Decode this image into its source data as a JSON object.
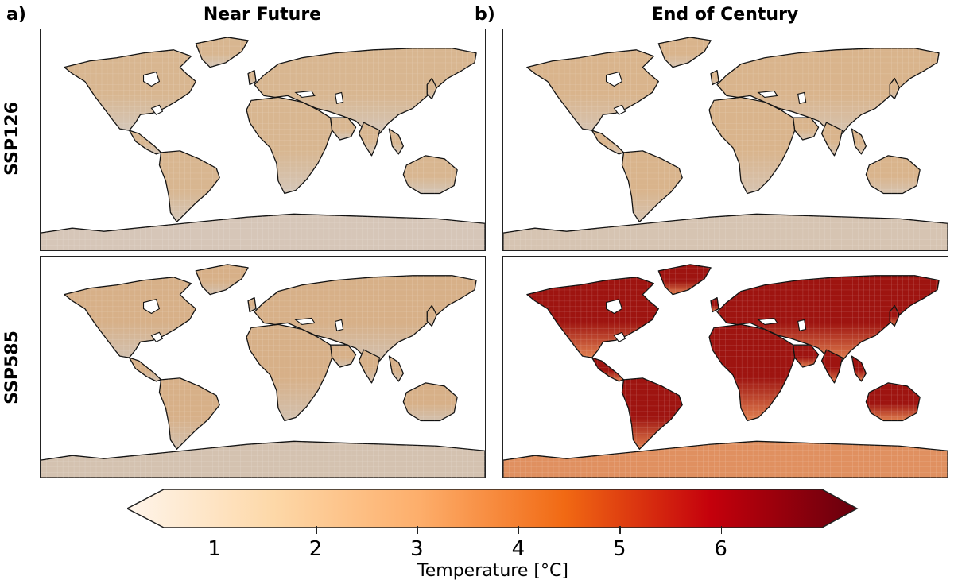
{
  "panel_labels": {
    "a": "a)",
    "b": "b)"
  },
  "column_titles": {
    "near": "Near Future",
    "end": "End of Century"
  },
  "row_labels": {
    "ssp126": "SSP126",
    "ssp585": "SSP585"
  },
  "colorbar": {
    "label": "Temperature [°C]",
    "ticks": [
      "1",
      "2",
      "3",
      "4",
      "5",
      "6"
    ],
    "range": [
      0.5,
      7
    ],
    "colors": [
      "#fff5eb",
      "#fdd8a8",
      "#fdae6b",
      "#f16913",
      "#c4000c",
      "#67000d"
    ]
  },
  "panels": [
    {
      "id": "ssp126-near",
      "land_color": "#d8b690",
      "land_color_south": "#d4c6b8",
      "antarctica": "#d6c6b8"
    },
    {
      "id": "ssp126-end",
      "land_color": "#d9b48c",
      "land_color_south": "#d6c3b0",
      "antarctica": "#d6c4b2"
    },
    {
      "id": "ssp585-near",
      "land_color": "#d7b088",
      "land_color_south": "#d2c0ae",
      "antarctica": "#d4c2b0"
    },
    {
      "id": "ssp585-end",
      "land_color": "#9e1410",
      "land_color_south": "#e08050",
      "antarctica": "#e09060"
    }
  ]
}
